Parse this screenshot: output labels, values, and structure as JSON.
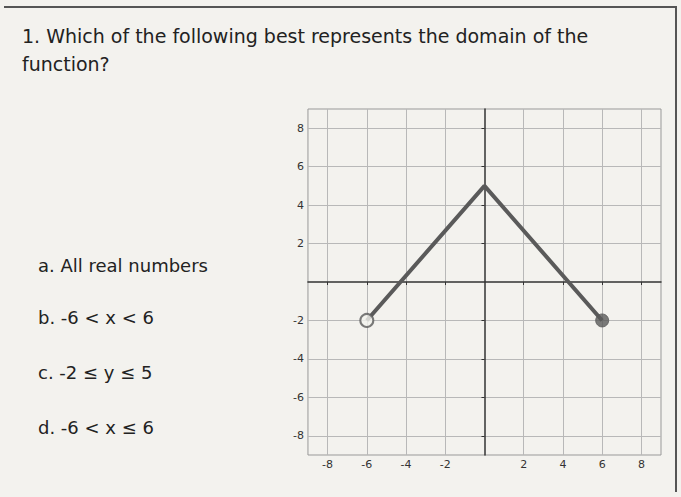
{
  "question": "1. Which of the following best represents the domain of the function?",
  "options": [
    "a. All real numbers",
    "b. -6 < x < 6",
    "c. -2 ≤ y ≤ 5",
    "d. -6 < x ≤ 6"
  ],
  "chart_data": {
    "type": "line",
    "series": [
      {
        "type": "line",
        "x": [
          -6,
          0,
          6
        ],
        "values": [
          -2,
          5,
          -2
        ],
        "color": "#5a5a5a",
        "marker": "none"
      },
      {
        "type": "scatter",
        "x": [
          -6
        ],
        "values": [
          -2
        ],
        "color": "#5a5a5a",
        "marker": "open"
      },
      {
        "type": "scatter",
        "x": [
          6
        ],
        "values": [
          -2
        ],
        "color": "#5a5a5a",
        "marker": "closed"
      }
    ],
    "xlim": [
      -9,
      9
    ],
    "ylim": [
      -9,
      9
    ],
    "xticks": [
      -8,
      -6,
      -4,
      -2,
      2,
      4,
      6,
      8
    ],
    "yticks": [
      -8,
      -6,
      -4,
      -2,
      2,
      4,
      6,
      8
    ],
    "grid": true
  }
}
